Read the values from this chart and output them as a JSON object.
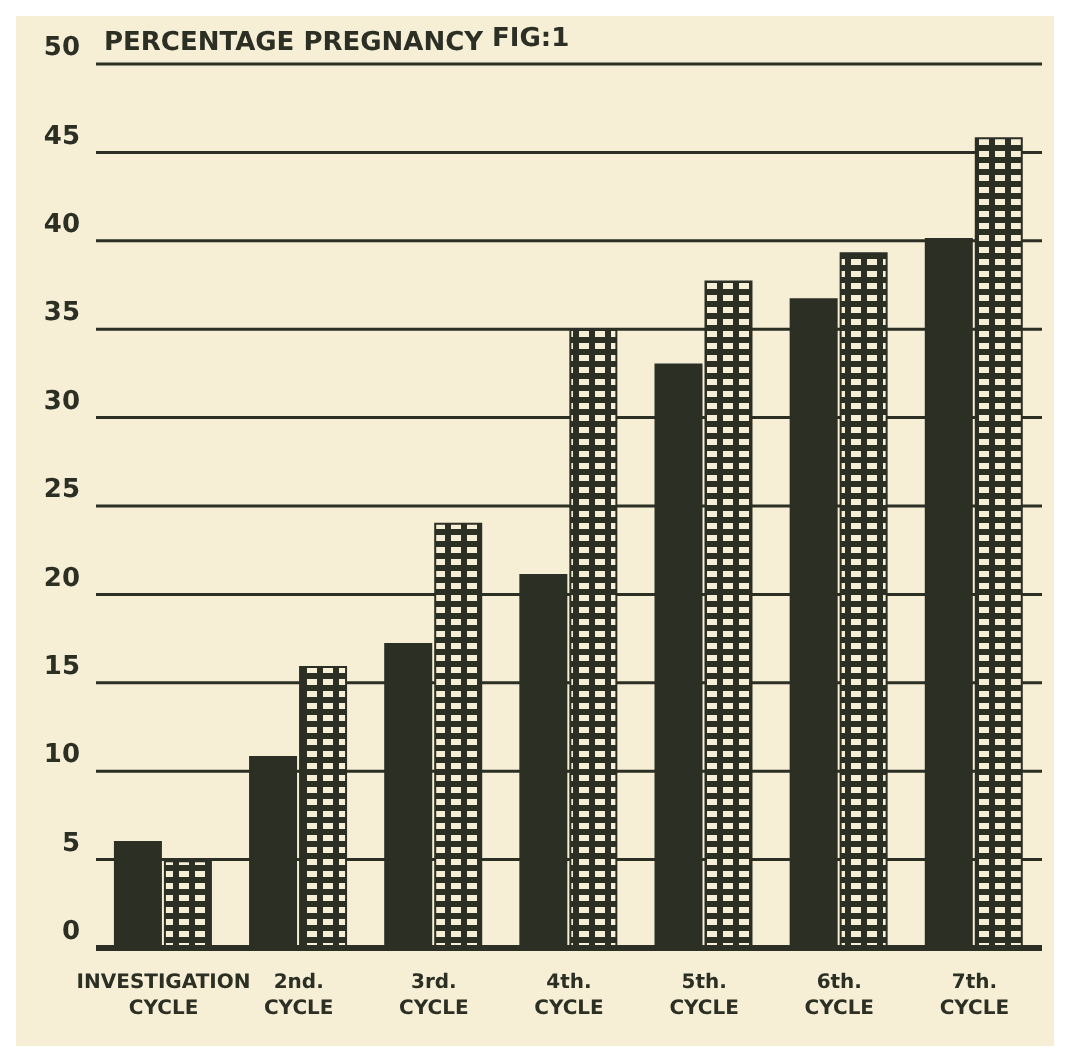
{
  "chart_data": {
    "type": "bar",
    "ylabel": "PERCENTAGE PREGNANCY",
    "annotations": [
      "FIG:1"
    ],
    "categories": [
      "INVESTIGATION\nCYCLE",
      "2nd.\nCYCLE",
      "3rd.\nCYCLE",
      "4th.\nCYCLE",
      "5th.\nCYCLE",
      "6th.\nCYCLE",
      "7th.\nCYCLE"
    ],
    "series": [
      {
        "color": "#2b2f24",
        "values": [
          6.0,
          10.8,
          17.2,
          21.1,
          33.0,
          36.7,
          40.1
        ]
      },
      {
        "color": "#2b2f24",
        "values": [
          4.9,
          15.9,
          24.0,
          35.0,
          37.7,
          39.3,
          45.8
        ]
      }
    ],
    "ylim": [
      0,
      50
    ],
    "yticks": [
      0,
      5,
      10,
      15,
      20,
      25,
      30,
      35,
      40,
      45,
      50
    ],
    "grid": "y",
    "legend": false
  }
}
